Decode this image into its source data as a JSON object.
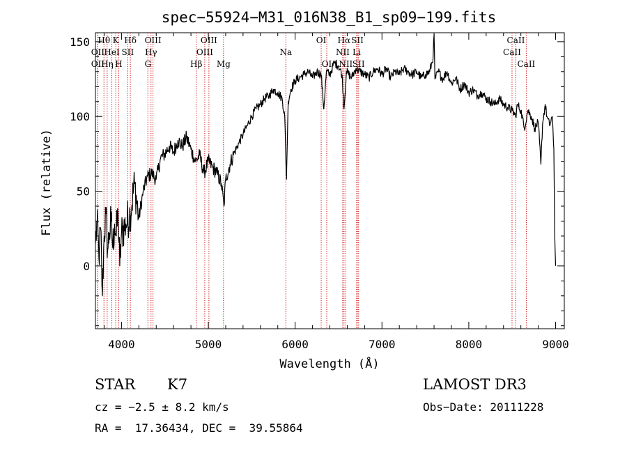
{
  "chart_data": {
    "type": "line",
    "title": "spec−55924−M31_016N38_B1_sp09−199.fits",
    "xlabel": "Wavelength (Å)",
    "ylabel": "Flux (relative)",
    "xlim": [
      3700,
      9100
    ],
    "ylim": [
      -42,
      156
    ],
    "xticks": [
      4000,
      5000,
      6000,
      7000,
      8000,
      9000
    ],
    "xtick_labels": [
      "4000",
      "5000",
      "6000",
      "7000",
      "8000",
      "9000"
    ],
    "yticks": [
      0,
      50,
      100,
      150
    ],
    "ytick_labels": [
      "0",
      "50",
      "100",
      "150"
    ],
    "grid": false,
    "series": [
      {
        "name": "flux",
        "points": [
          [
            3700,
            15
          ],
          [
            3720,
            30
          ],
          [
            3740,
            5
          ],
          [
            3760,
            25
          ],
          [
            3780,
            -20
          ],
          [
            3800,
            20
          ],
          [
            3820,
            35
          ],
          [
            3840,
            10
          ],
          [
            3860,
            22
          ],
          [
            3880,
            30
          ],
          [
            3900,
            12
          ],
          [
            3920,
            28
          ],
          [
            3940,
            20
          ],
          [
            3960,
            35
          ],
          [
            3980,
            0
          ],
          [
            4000,
            22
          ],
          [
            4050,
            28
          ],
          [
            4100,
            35
          ],
          [
            4150,
            55
          ],
          [
            4200,
            32
          ],
          [
            4250,
            50
          ],
          [
            4300,
            60
          ],
          [
            4350,
            62
          ],
          [
            4400,
            58
          ],
          [
            4450,
            72
          ],
          [
            4500,
            75
          ],
          [
            4550,
            80
          ],
          [
            4600,
            76
          ],
          [
            4650,
            84
          ],
          [
            4700,
            80
          ],
          [
            4750,
            86
          ],
          [
            4800,
            78
          ],
          [
            4850,
            70
          ],
          [
            4900,
            74
          ],
          [
            4950,
            62
          ],
          [
            5000,
            70
          ],
          [
            5050,
            66
          ],
          [
            5100,
            62
          ],
          [
            5150,
            55
          ],
          [
            5180,
            40
          ],
          [
            5200,
            58
          ],
          [
            5250,
            68
          ],
          [
            5300,
            76
          ],
          [
            5350,
            82
          ],
          [
            5400,
            88
          ],
          [
            5450,
            94
          ],
          [
            5500,
            100
          ],
          [
            5550,
            105
          ],
          [
            5600,
            108
          ],
          [
            5650,
            112
          ],
          [
            5700,
            114
          ],
          [
            5750,
            118
          ],
          [
            5800,
            116
          ],
          [
            5850,
            112
          ],
          [
            5880,
            100
          ],
          [
            5900,
            58
          ],
          [
            5920,
            110
          ],
          [
            5950,
            118
          ],
          [
            6000,
            124
          ],
          [
            6050,
            126
          ],
          [
            6100,
            128
          ],
          [
            6150,
            130
          ],
          [
            6200,
            126
          ],
          [
            6250,
            130
          ],
          [
            6300,
            128
          ],
          [
            6330,
            105
          ],
          [
            6360,
            130
          ],
          [
            6400,
            128
          ],
          [
            6450,
            136
          ],
          [
            6500,
            134
          ],
          [
            6540,
            128
          ],
          [
            6563,
            105
          ],
          [
            6590,
            130
          ],
          [
            6650,
            126
          ],
          [
            6700,
            132
          ],
          [
            6750,
            130
          ],
          [
            6800,
            128
          ],
          [
            6850,
            126
          ],
          [
            6900,
            130
          ],
          [
            6950,
            132
          ],
          [
            7000,
            128
          ],
          [
            7050,
            132
          ],
          [
            7100,
            126
          ],
          [
            7150,
            130
          ],
          [
            7200,
            128
          ],
          [
            7250,
            132
          ],
          [
            7300,
            130
          ],
          [
            7350,
            128
          ],
          [
            7400,
            130
          ],
          [
            7450,
            126
          ],
          [
            7500,
            128
          ],
          [
            7550,
            130
          ],
          [
            7590,
            140
          ],
          [
            7600,
            155
          ],
          [
            7610,
            125
          ],
          [
            7650,
            130
          ],
          [
            7700,
            125
          ],
          [
            7750,
            130
          ],
          [
            7800,
            122
          ],
          [
            7850,
            126
          ],
          [
            7900,
            118
          ],
          [
            7950,
            122
          ],
          [
            8000,
            116
          ],
          [
            8050,
            118
          ],
          [
            8100,
            114
          ],
          [
            8150,
            116
          ],
          [
            8200,
            112
          ],
          [
            8250,
            110
          ],
          [
            8300,
            108
          ],
          [
            8350,
            112
          ],
          [
            8400,
            108
          ],
          [
            8450,
            106
          ],
          [
            8500,
            104
          ],
          [
            8540,
            100
          ],
          [
            8560,
            108
          ],
          [
            8600,
            104
          ],
          [
            8640,
            92
          ],
          [
            8680,
            104
          ],
          [
            8720,
            100
          ],
          [
            8760,
            92
          ],
          [
            8800,
            96
          ],
          [
            8830,
            68
          ],
          [
            8850,
            95
          ],
          [
            8880,
            108
          ],
          [
            8900,
            100
          ],
          [
            8930,
            94
          ],
          [
            8960,
            100
          ],
          [
            8980,
            78
          ],
          [
            8990,
            20
          ],
          [
            9000,
            0
          ]
        ]
      }
    ],
    "line_markers": [
      {
        "label": "Hθ",
        "x": 3798,
        "row": 1
      },
      {
        "label": "OII",
        "x": 3727,
        "row": 2
      },
      {
        "label": "OII",
        "x": 3727,
        "row": 3
      },
      {
        "label": "Hη",
        "x": 3835,
        "row": 3
      },
      {
        "label": "HeI",
        "x": 3889,
        "row": 2
      },
      {
        "label": "K",
        "x": 3934,
        "row": 1
      },
      {
        "label": "H",
        "x": 3969,
        "row": 3
      },
      {
        "label": "SII",
        "x": 4072,
        "row": 2
      },
      {
        "label": "Hδ",
        "x": 4102,
        "row": 1
      },
      {
        "label": "OIII",
        "x": 4363,
        "row": 1
      },
      {
        "label": "Hγ",
        "x": 4340,
        "row": 2
      },
      {
        "label": "G",
        "x": 4304,
        "row": 3
      },
      {
        "label": "Hβ",
        "x": 4861,
        "row": 3
      },
      {
        "label": "OIII",
        "x": 5007,
        "row": 1
      },
      {
        "label": "OIII",
        "x": 4959,
        "row": 2
      },
      {
        "label": "Mg",
        "x": 5175,
        "row": 3
      },
      {
        "label": "Na",
        "x": 5893,
        "row": 2
      },
      {
        "label": "OI",
        "x": 6300,
        "row": 1
      },
      {
        "label": "OI",
        "x": 6364,
        "row": 3
      },
      {
        "label": "Hα",
        "x": 6563,
        "row": 1
      },
      {
        "label": "SII",
        "x": 6717,
        "row": 1
      },
      {
        "label": "NII",
        "x": 6548,
        "row": 2
      },
      {
        "label": "Li",
        "x": 6708,
        "row": 2
      },
      {
        "label": "NII",
        "x": 6583,
        "row": 3
      },
      {
        "label": "SII",
        "x": 6731,
        "row": 3
      },
      {
        "label": "CaII",
        "x": 8542,
        "row": 1
      },
      {
        "label": "CaII",
        "x": 8498,
        "row": 2
      },
      {
        "label": "CaII",
        "x": 8662,
        "row": 3
      }
    ]
  },
  "info": {
    "object_class": "STAR",
    "subclass": "K7",
    "survey": "LAMOST DR3",
    "cz": "cz = −2.5 ± 8.2 km/s",
    "obs_date": "Obs−Date: 20111228",
    "coords": "RA =  17.36434, DEC =  39.55864"
  },
  "colors": {
    "line": "#000000",
    "marker": "#cc0000",
    "background": "#ffffff"
  }
}
